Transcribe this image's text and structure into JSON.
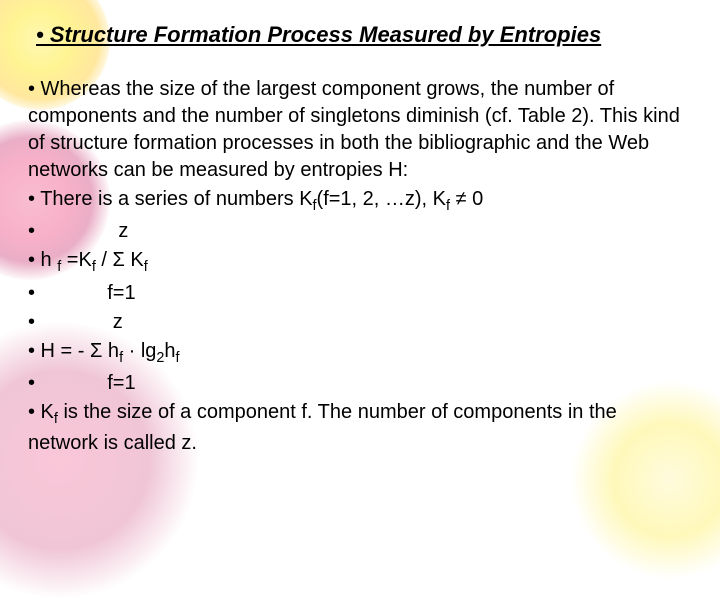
{
  "heading": "• Structure Formation Process Measured by Entropies",
  "lines": {
    "l0": "• Whereas the size of the largest component grows, the number of components and the number of singletons diminish (cf. Table 2). This kind of structure formation processes in both the bibliographic and the Web networks can be measured by entropies H:",
    "l1_a": "• There is a series of numbers K",
    "l1_b": "(f=1, 2, …z), K",
    "l1_c": " ≠ 0",
    "l2": "•               z",
    "l3_a": "• h ",
    "l3_b": " =K",
    "l3_c": " / Σ  K",
    "l4": "•             f=1",
    "l5": "•              z",
    "l6_a": "• H = -  Σ  h",
    "l6_b": " · lg",
    "l6_c": "h",
    "l7": "•             f=1",
    "l8_a": "• K",
    "l8_b": " is the size of a component f. The number of components in the network is called z."
  },
  "subs": {
    "f": "f",
    "two": "2"
  },
  "style": {
    "heading_fontsize": 22,
    "body_fontsize": 20,
    "heading_color": "#000000",
    "body_color": "#000000",
    "bg_colors": {
      "yellow_light": "#fff176",
      "yellow_mid": "#ffeb3b",
      "yellow_dark": "#ffd54f",
      "pink_light": "#ec407a",
      "pink_mid": "#e91e63",
      "pink_dark": "#c2185b"
    }
  }
}
